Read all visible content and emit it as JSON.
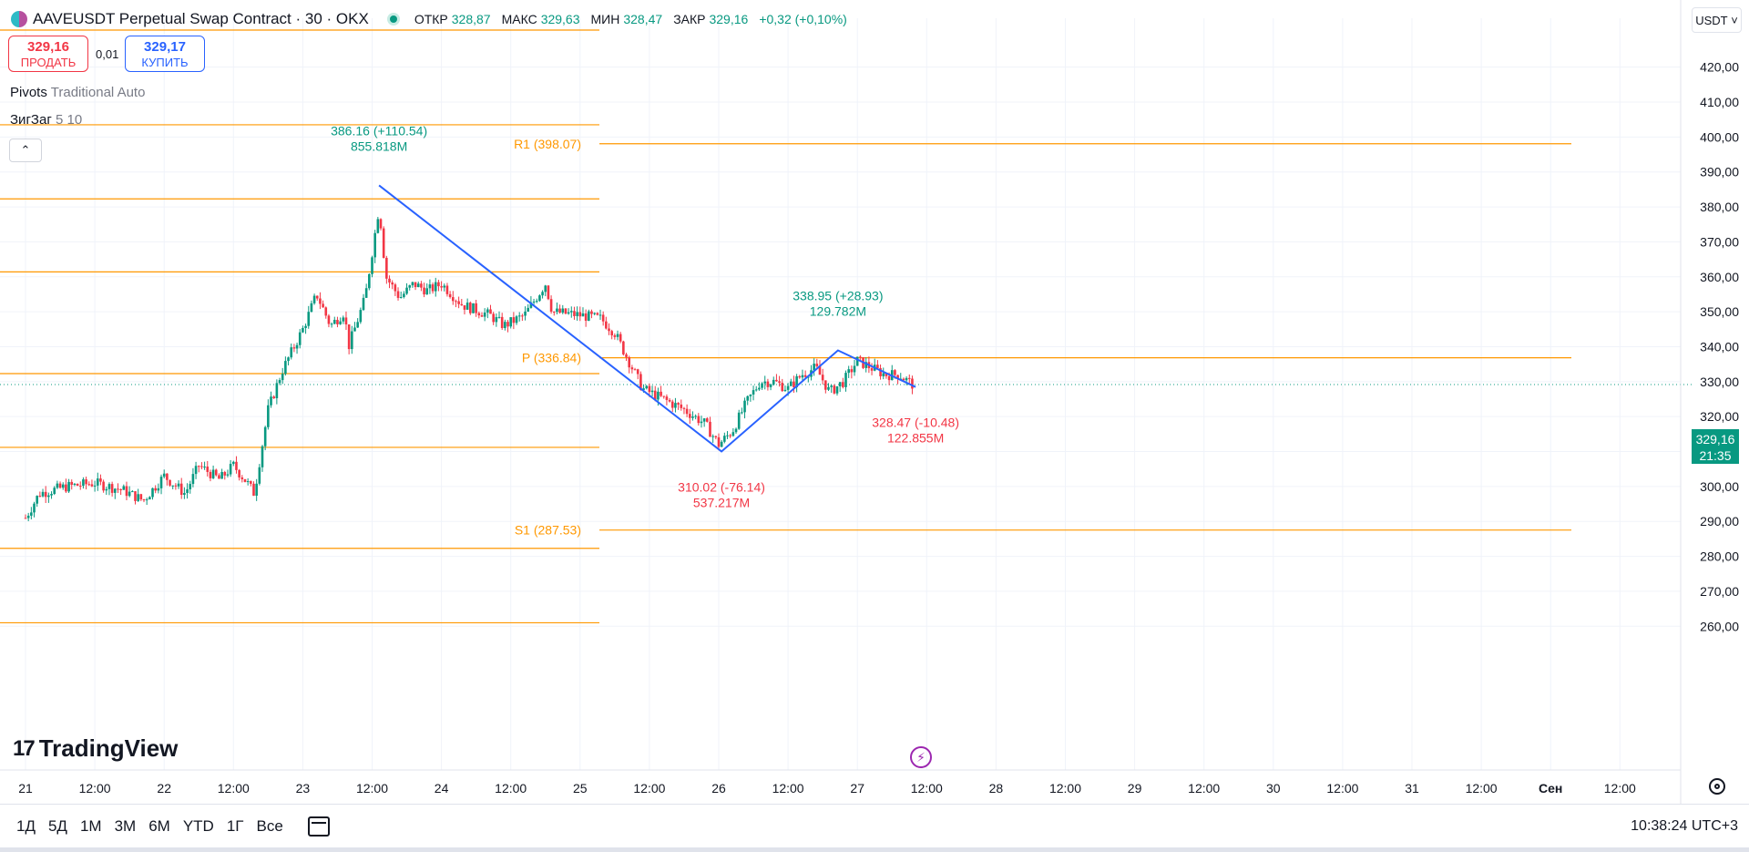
{
  "header": {
    "title": "AAVEUSDT Perpetual Swap Contract · 30 · OKX",
    "symbol_icon": "aave-icon",
    "ohlc": [
      {
        "key": "ОТКР",
        "value": "328,87"
      },
      {
        "key": "МАКС",
        "value": "329,63"
      },
      {
        "key": "МИН",
        "value": "328,47"
      },
      {
        "key": "ЗАКР",
        "value": "329,16"
      },
      {
        "key": "",
        "value": "+0,32 (+0,10%)"
      }
    ]
  },
  "trade": {
    "sell_price": "329,16",
    "sell_label": "ПРОДАТЬ",
    "spread": "0,01",
    "buy_price": "329,17",
    "buy_label": "КУПИТЬ"
  },
  "indicators": {
    "pivots_name": "Pivots",
    "pivots_params": "Traditional Auto",
    "zigzag_name": "ЗигЗаг",
    "zigzag_params": "5 10"
  },
  "logo_text": "TradingView",
  "currency": "USDT",
  "last_price": {
    "value": "329,16",
    "countdown": "21:35"
  },
  "bottom": {
    "ranges": [
      "1Д",
      "5Д",
      "1М",
      "3М",
      "6М",
      "YTD",
      "1Г",
      "Все"
    ],
    "clock": "10:38:24 UTC+3"
  },
  "colors": {
    "up": "#089981",
    "down": "#f23645",
    "pivot": "#ff9800",
    "zigzag": "#2962ff",
    "grid": "#f0f3fa"
  },
  "chart_data": {
    "type": "candlestick",
    "y_axis": {
      "min": 254,
      "max": 431,
      "ticks": [
        "260,00",
        "270,00",
        "280,00",
        "290,00",
        "300,00",
        "310,00",
        "320,00",
        "330,00",
        "340,00",
        "350,00",
        "360,00",
        "370,00",
        "380,00",
        "390,00",
        "400,00",
        "410,00",
        "420,00"
      ],
      "tick_values": [
        260,
        270,
        280,
        290,
        300,
        310,
        320,
        330,
        340,
        350,
        360,
        370,
        380,
        390,
        400,
        410,
        420
      ]
    },
    "x_axis": {
      "unit": "days since 21 Aug (30-min bars)",
      "ticks": [
        {
          "label": "21",
          "t": 0
        },
        {
          "label": "12:00",
          "t": 0.5
        },
        {
          "label": "22",
          "t": 1
        },
        {
          "label": "12:00",
          "t": 1.5
        },
        {
          "label": "23",
          "t": 2
        },
        {
          "label": "12:00",
          "t": 2.5
        },
        {
          "label": "24",
          "t": 3
        },
        {
          "label": "12:00",
          "t": 3.5
        },
        {
          "label": "25",
          "t": 4
        },
        {
          "label": "12:00",
          "t": 4.5
        },
        {
          "label": "26",
          "t": 5
        },
        {
          "label": "12:00",
          "t": 5.5
        },
        {
          "label": "27",
          "t": 6
        },
        {
          "label": "12:00",
          "t": 6.5
        },
        {
          "label": "28",
          "t": 7
        },
        {
          "label": "12:00",
          "t": 7.5
        },
        {
          "label": "29",
          "t": 8
        },
        {
          "label": "12:00",
          "t": 8.5
        },
        {
          "label": "30",
          "t": 9
        },
        {
          "label": "12:00",
          "t": 9.5
        },
        {
          "label": "31",
          "t": 10
        },
        {
          "label": "12:00",
          "t": 10.5
        },
        {
          "label": "Сен",
          "t": 11
        },
        {
          "label": "12:00",
          "t": 11.5
        }
      ]
    },
    "close_path": [
      [
        0,
        291
      ],
      [
        0.1,
        298
      ],
      [
        0.3,
        300
      ],
      [
        0.5,
        301
      ],
      [
        0.7,
        299
      ],
      [
        0.85,
        296
      ],
      [
        1.0,
        303
      ],
      [
        1.15,
        298
      ],
      [
        1.25,
        306
      ],
      [
        1.4,
        302
      ],
      [
        1.5,
        306
      ],
      [
        1.6,
        301
      ],
      [
        1.65,
        298
      ],
      [
        1.7,
        310
      ],
      [
        1.75,
        322
      ],
      [
        1.85,
        333
      ],
      [
        2.0,
        345
      ],
      [
        2.1,
        355
      ],
      [
        2.2,
        346
      ],
      [
        2.3,
        350
      ],
      [
        2.33,
        340
      ],
      [
        2.45,
        354
      ],
      [
        2.55,
        380
      ],
      [
        2.6,
        360
      ],
      [
        2.7,
        354
      ],
      [
        2.8,
        358
      ],
      [
        2.9,
        356
      ],
      [
        3.0,
        358
      ],
      [
        3.15,
        352
      ],
      [
        3.35,
        349
      ],
      [
        3.45,
        346
      ],
      [
        3.6,
        349
      ],
      [
        3.75,
        358
      ],
      [
        3.8,
        350
      ],
      [
        4.0,
        349
      ],
      [
        4.15,
        348
      ],
      [
        4.25,
        344
      ],
      [
        4.45,
        328
      ],
      [
        4.6,
        325
      ],
      [
        4.75,
        322
      ],
      [
        4.9,
        318
      ],
      [
        5.0,
        312
      ],
      [
        5.1,
        316
      ],
      [
        5.2,
        324
      ],
      [
        5.3,
        330
      ],
      [
        5.4,
        330
      ],
      [
        5.5,
        328
      ],
      [
        5.6,
        332
      ],
      [
        5.7,
        334
      ],
      [
        5.8,
        327
      ],
      [
        5.9,
        330
      ],
      [
        6.0,
        336
      ],
      [
        6.1,
        334
      ],
      [
        6.2,
        332
      ],
      [
        6.3,
        332
      ],
      [
        6.4,
        329.16
      ]
    ],
    "pivot_levels": [
      {
        "name": "R1",
        "value": 398.07,
        "label": "R1 (398.07)"
      },
      {
        "name": "P",
        "value": 336.84,
        "label": "P (336.84)"
      },
      {
        "name": "S1",
        "value": 287.53,
        "label": "S1 (287.53)"
      }
    ],
    "previous_pivot_levels": [
      403.5,
      382.3,
      361.4,
      332.3,
      311.2,
      282.3,
      261.0
    ],
    "last_price": 329.16,
    "zigzag": [
      {
        "t": 2.55,
        "price": 386.16,
        "label": "386.16 (+110.54)",
        "volume": "855.818M",
        "dir": "up"
      },
      {
        "t": 5.02,
        "price": 310.02,
        "label": "310.02 (-76.14)",
        "volume": "537.217M",
        "dir": "down"
      },
      {
        "t": 5.86,
        "price": 338.95,
        "label": "338.95 (+28.93)",
        "volume": "129.782M",
        "dir": "up"
      },
      {
        "t": 6.42,
        "price": 328.47,
        "label": "328.47 (-10.48)",
        "volume": "122.855M",
        "dir": "down"
      }
    ]
  }
}
